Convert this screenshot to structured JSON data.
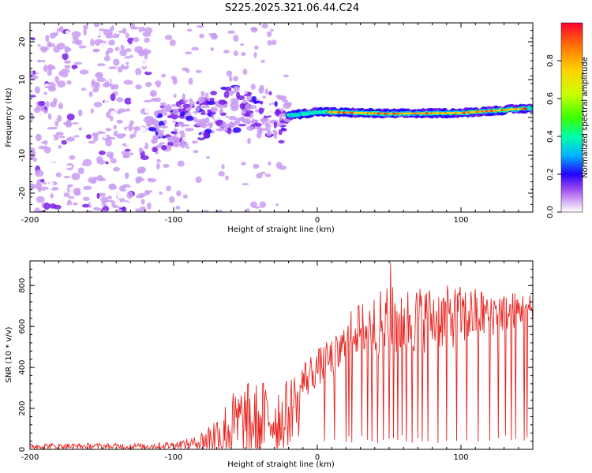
{
  "title": "S225.2025.321.06.44.C24",
  "chart_data": [
    {
      "type": "heatmap",
      "xlabel": "Height of straight line (km)",
      "ylabel": "Frequency (Hz)",
      "xlim": [
        -200,
        150
      ],
      "ylim": [
        -25,
        25
      ],
      "xticks": [
        -200,
        -100,
        0,
        100
      ],
      "yticks": [
        -20,
        -10,
        0,
        10,
        20
      ],
      "xtick_labels": [
        "-200",
        "-100",
        "0",
        "100"
      ],
      "ytick_labels": [
        "-20",
        "-10",
        "0",
        "10",
        "20"
      ],
      "colorbar": {
        "label": "Normalized spectral amplitude",
        "range": [
          0,
          1
        ],
        "ticks": [
          "0.0",
          "0.2",
          "0.4",
          "0.6",
          "0.8"
        ],
        "colors": [
          "#ffffff",
          "#c99cf2",
          "#7a1fe6",
          "#2400ff",
          "#00b4ff",
          "#00ffa8",
          "#3cff00",
          "#c8ff00",
          "#ffd200",
          "#ff7a00",
          "#ff0033"
        ]
      },
      "regions": [
        {
          "x": [
            -200,
            -115
          ],
          "y": [
            -25,
            25
          ],
          "description": "scattered noise",
          "amplitude": 0.15
        },
        {
          "x": [
            -115,
            -20
          ],
          "y": [
            -10,
            17
          ],
          "description": "drifting clusters",
          "amplitude": 0.35
        },
        {
          "x": [
            -20,
            150
          ],
          "y": [
            0,
            3
          ],
          "description": "strong narrow line",
          "amplitude": 0.9
        }
      ],
      "line_frequency_hz": [
        {
          "x": -20,
          "y": 0.5
        },
        {
          "x": 0,
          "y": 1.5
        },
        {
          "x": 50,
          "y": 1.0
        },
        {
          "x": 100,
          "y": 1.2
        },
        {
          "x": 150,
          "y": 2.5
        }
      ]
    },
    {
      "type": "line",
      "xlabel": "Height of straight line (km)",
      "ylabel": "SNR (10 * v/v)",
      "xlim": [
        -200,
        150
      ],
      "ylim": [
        0,
        920
      ],
      "xticks": [
        -200,
        -100,
        0,
        100
      ],
      "yticks": [
        0,
        200,
        400,
        600,
        800
      ],
      "xtick_labels": [
        "-200",
        "-100",
        "0",
        "100"
      ],
      "ytick_labels": [
        "0",
        "200",
        "400",
        "600",
        "800"
      ],
      "series": [
        {
          "name": "SNR",
          "color": "#e8231f",
          "envelope": [
            {
              "x": -200,
              "base": 15,
              "spread": 15
            },
            {
              "x": -120,
              "base": 15,
              "spread": 15
            },
            {
              "x": -100,
              "base": 20,
              "spread": 20
            },
            {
              "x": -85,
              "base": 30,
              "spread": 30
            },
            {
              "x": -70,
              "base": 60,
              "spread": 120
            },
            {
              "x": -55,
              "base": 120,
              "spread": 200
            },
            {
              "x": -40,
              "base": 140,
              "spread": 200
            },
            {
              "x": -20,
              "base": 170,
              "spread": 170
            },
            {
              "x": -10,
              "base": 330,
              "spread": 110
            },
            {
              "x": 0,
              "base": 400,
              "spread": 90
            },
            {
              "x": 15,
              "base": 460,
              "spread": 110
            },
            {
              "x": 25,
              "base": 580,
              "spread": 120
            },
            {
              "x": 50,
              "base": 620,
              "spread": 180
            },
            {
              "x": 100,
              "base": 650,
              "spread": 150
            },
            {
              "x": 150,
              "base": 690,
              "spread": 70
            }
          ],
          "dropouts_x": [
            -13,
            5,
            12,
            20,
            22,
            24,
            31,
            35,
            38,
            42,
            46,
            50,
            53,
            56,
            59,
            62,
            66,
            70,
            73,
            77,
            84,
            90,
            97,
            104,
            112,
            120,
            126,
            131,
            135,
            138,
            144,
            146
          ],
          "peak": {
            "x": 51,
            "y": 912
          }
        }
      ]
    }
  ]
}
